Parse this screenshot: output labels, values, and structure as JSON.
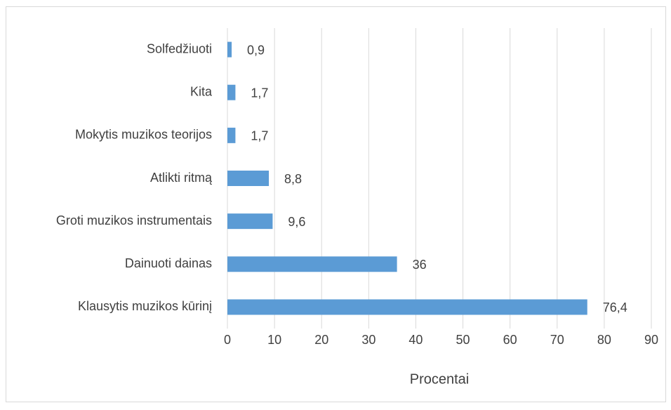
{
  "chart_data": {
    "type": "barh",
    "categories": [
      "Solfedžiuoti",
      "Kita",
      "Mokytis muzikos teorijos",
      "Atlikti ritmą",
      "Groti muzikos instrumentais",
      "Dainuoti dainas",
      "Klausytis muzikos kūrinį"
    ],
    "values": [
      0.9,
      1.7,
      1.7,
      8.8,
      9.6,
      36,
      76.4
    ],
    "value_labels": [
      "0,9",
      "1,7",
      "1,7",
      "8,8",
      "9,6",
      "36",
      "76,4"
    ],
    "color": "#5b9bd5",
    "xlabel": "Procentai",
    "xlim": [
      0,
      90
    ],
    "xticks": [
      0,
      10,
      20,
      30,
      40,
      50,
      60,
      70,
      80,
      90
    ],
    "grid": true
  }
}
